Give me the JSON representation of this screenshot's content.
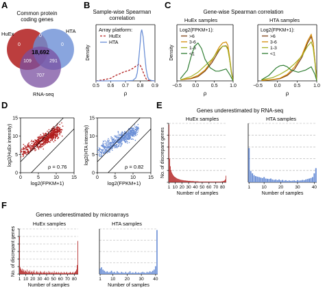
{
  "panels": {
    "A": {
      "letter": "A",
      "title_l1": "Common protein",
      "title_l2": "coding genes",
      "labels": {
        "huex": "HuEx",
        "hta": "HTA",
        "rnaseq": "RNA-seq"
      },
      "regions": {
        "center": "18,692",
        "huex_only": "0",
        "hta_only": "0",
        "huex_rnaseq": "109",
        "hta_rnaseq": "291",
        "rnaseq_only": "707",
        "huex_hta": "0"
      }
    },
    "B": {
      "letter": "B",
      "title_l1": "Sample-wise Spearman",
      "title_l2": "correlation",
      "legend_title": "Array platform:"
    },
    "C": {
      "letter": "C",
      "title": "Gene-wise Spearman correlation",
      "sub_huex": "HuEx samples",
      "sub_hta": "HTA samples",
      "legend_title": "Log2(FPKM+1):"
    },
    "D": {
      "letter": "D",
      "rho_huex": "ρ = 0.76",
      "rho_hta": "ρ = 0.82"
    },
    "E": {
      "letter": "E",
      "title": "Genes underestimated by RNA-seq",
      "sub_huex": "HuEx samples",
      "sub_hta": "HTA samples"
    },
    "F": {
      "letter": "F",
      "title": "Genes underestimated by microarrays",
      "sub_huex": "HuEx samples",
      "sub_hta": "HTA samples"
    }
  },
  "colors": {
    "huex": "#b01c1c",
    "hta": "#6b8fd6",
    "rnaseq": "#7a4fa0",
    "gt6": "#7a3a10",
    "c36": "#d48a00",
    "c13": "#a0b020",
    "lt1": "#2e7d32"
  },
  "chart_data": [
    {
      "id": "B",
      "type": "line",
      "ylabel": "Density",
      "xlabel": "ρ",
      "xlim": [
        0.5,
        0.9
      ],
      "ylim": [
        0,
        28
      ],
      "xticks": [
        "0.5",
        "0.6",
        "0.7",
        "0.8",
        "0.9"
      ],
      "legend": "top-left",
      "series": [
        {
          "name": "HuEx",
          "style": "dashed",
          "x": [
            0.5,
            0.55,
            0.6,
            0.63,
            0.66,
            0.69,
            0.72,
            0.75,
            0.77,
            0.79,
            0.8,
            0.81,
            0.82,
            0.83,
            0.84,
            0.85,
            0.86,
            0.88,
            0.9
          ],
          "y": [
            0,
            0.5,
            1.3,
            2.6,
            3.5,
            4.5,
            5.1,
            6.2,
            7.3,
            8.2,
            7.8,
            6.2,
            4.3,
            2.6,
            1.0,
            0.4,
            0.2,
            0.1,
            0
          ]
        },
        {
          "name": "HTA",
          "style": "solid",
          "x": [
            0.5,
            0.7,
            0.75,
            0.77,
            0.78,
            0.79,
            0.8,
            0.805,
            0.81,
            0.82,
            0.83,
            0.84,
            0.85,
            0.86,
            0.88,
            0.9
          ],
          "y": [
            0,
            0,
            0.2,
            1.5,
            4.0,
            11.0,
            19.0,
            24.0,
            25.5,
            22.0,
            13.5,
            6.0,
            2.0,
            0.6,
            0.1,
            0
          ]
        }
      ]
    },
    {
      "id": "C-HuEx",
      "type": "line",
      "ylabel": "Density",
      "xlabel": "ρ",
      "xlim": [
        -0.6,
        1.0
      ],
      "ylim": [
        0,
        2.6
      ],
      "xticks": [
        "−0.5",
        "0.0",
        "0.5",
        "1.0"
      ],
      "legend": "top-left",
      "series": [
        {
          "name": ">6",
          "x": [
            -0.5,
            -0.2,
            0.0,
            0.2,
            0.4,
            0.6,
            0.7,
            0.8,
            0.85,
            0.9,
            0.95,
            1.0
          ],
          "y": [
            0.05,
            0.1,
            0.2,
            0.45,
            0.85,
            1.4,
            1.6,
            1.62,
            1.5,
            1.0,
            0.4,
            0
          ]
        },
        {
          "name": "3-6",
          "x": [
            -0.5,
            -0.2,
            0.0,
            0.2,
            0.4,
            0.6,
            0.7,
            0.8,
            0.85,
            0.9,
            0.95,
            1.0
          ],
          "y": [
            0.05,
            0.12,
            0.25,
            0.5,
            0.95,
            1.55,
            1.75,
            1.8,
            1.65,
            1.1,
            0.45,
            0
          ]
        },
        {
          "name": "1-3",
          "x": [
            -0.5,
            -0.2,
            0.0,
            0.2,
            0.4,
            0.6,
            0.7,
            0.8,
            0.85,
            0.9,
            0.95,
            1.0
          ],
          "y": [
            0.05,
            0.2,
            0.4,
            0.7,
            1.0,
            1.45,
            1.6,
            1.6,
            1.45,
            1.0,
            0.4,
            0
          ]
        },
        {
          "name": "<1",
          "x": [
            -0.5,
            -0.3,
            -0.2,
            -0.1,
            0.0,
            0.1,
            0.2,
            0.35,
            0.5,
            0.6,
            0.7,
            0.8,
            0.9,
            1.0
          ],
          "y": [
            0.1,
            0.5,
            1.1,
            1.6,
            1.75,
            1.5,
            1.0,
            0.6,
            0.45,
            0.45,
            0.5,
            0.55,
            0.3,
            0
          ]
        }
      ]
    },
    {
      "id": "C-HTA",
      "type": "line",
      "xlabel": "ρ",
      "xlim": [
        -0.6,
        1.0
      ],
      "ylim": [
        0,
        2.6
      ],
      "xticks": [
        "−0.5",
        "0.0",
        "0.5",
        "1.0"
      ],
      "legend": "top-left",
      "series": [
        {
          "name": ">6",
          "x": [
            -0.5,
            -0.2,
            0.0,
            0.2,
            0.4,
            0.6,
            0.75,
            0.85,
            0.9,
            0.95,
            1.0
          ],
          "y": [
            0.02,
            0.05,
            0.1,
            0.25,
            0.55,
            1.1,
            1.75,
            2.05,
            1.75,
            0.9,
            0
          ]
        },
        {
          "name": "3-6",
          "x": [
            -0.5,
            -0.2,
            0.0,
            0.2,
            0.4,
            0.6,
            0.75,
            0.85,
            0.9,
            0.95,
            1.0
          ],
          "y": [
            0.02,
            0.06,
            0.12,
            0.3,
            0.65,
            1.2,
            1.85,
            2.15,
            1.8,
            0.95,
            0
          ]
        },
        {
          "name": "1-3",
          "x": [
            -0.5,
            -0.2,
            0.0,
            0.2,
            0.4,
            0.6,
            0.75,
            0.85,
            0.9,
            0.95,
            1.0
          ],
          "y": [
            0.05,
            0.15,
            0.3,
            0.5,
            0.8,
            1.15,
            1.6,
            1.8,
            1.55,
            0.85,
            0
          ]
        },
        {
          "name": "<1",
          "x": [
            -0.5,
            -0.3,
            -0.1,
            0.0,
            0.1,
            0.2,
            0.3,
            0.5,
            0.7,
            0.85,
            0.95,
            1.0
          ],
          "y": [
            0.05,
            0.25,
            0.6,
            0.7,
            0.72,
            0.65,
            0.5,
            0.4,
            0.5,
            0.65,
            0.3,
            0
          ]
        }
      ]
    },
    {
      "id": "D-HuEx",
      "type": "scatter",
      "xlabel": "log2(FPKM+1)",
      "ylabel": "log2(HuEx intensity)",
      "xlim": [
        0,
        15
      ],
      "ylim": [
        0,
        15
      ],
      "xticks": [
        "0",
        "5",
        "10",
        "15"
      ],
      "yticks": [
        "0",
        "5",
        "10",
        "15"
      ],
      "annotation": "ρ = 0.76"
    },
    {
      "id": "D-HTA",
      "type": "scatter",
      "xlabel": "log2(FPKM+1)",
      "ylabel": "log2(HTA intensity)",
      "xlim": [
        0,
        15
      ],
      "ylim": [
        0,
        15
      ],
      "xticks": [
        "0",
        "5",
        "10",
        "15"
      ],
      "yticks": [
        "0",
        "5",
        "10",
        "15"
      ],
      "annotation": "ρ = 0.82"
    },
    {
      "id": "E-HuEx",
      "type": "bar",
      "xlabel": "Number of samples",
      "ylabel": "No. of discrepant genes",
      "xlim": [
        0,
        85
      ],
      "ylim": [
        0,
        250
      ],
      "xticks": [
        "1",
        "10",
        "20",
        "30",
        "40",
        "50",
        "60",
        "70",
        "80"
      ],
      "yticks": [
        "0",
        "50",
        "100",
        "150",
        "200",
        "250"
      ],
      "values": [
        245,
        100,
        68,
        52,
        42,
        36,
        31,
        27,
        24,
        22,
        20,
        18,
        16,
        15,
        14,
        13,
        12,
        11,
        10,
        10,
        9,
        9,
        8,
        8,
        8,
        7,
        7,
        7,
        6,
        6,
        6,
        6,
        5,
        5,
        5,
        5,
        5,
        4,
        4,
        4,
        4,
        4,
        4,
        4,
        3,
        3,
        3,
        3,
        3,
        3,
        3,
        3,
        3,
        3,
        3,
        3,
        3,
        3,
        3,
        3,
        3,
        3,
        3,
        3,
        3,
        3,
        3,
        3,
        3,
        3,
        3,
        3,
        3,
        3,
        3,
        3,
        3,
        3,
        4,
        4,
        5,
        6,
        8,
        12,
        28
      ]
    },
    {
      "id": "E-HTA",
      "type": "bar",
      "xlabel": "Number of samples",
      "xlim": [
        0,
        42
      ],
      "ylim": [
        0,
        250
      ],
      "xticks": [
        "1",
        "10",
        "20",
        "30",
        "40"
      ],
      "values": [
        145,
        48,
        38,
        30,
        26,
        24,
        22,
        20,
        18,
        22,
        16,
        15,
        14,
        16,
        12,
        10,
        12,
        9,
        12,
        8,
        10,
        7,
        9,
        6,
        8,
        6,
        7,
        8,
        6,
        9,
        7,
        8,
        10,
        9,
        12,
        14,
        16,
        18,
        22,
        38,
        60
      ]
    },
    {
      "id": "F-HuEx",
      "type": "bar",
      "xlabel": "Number of samples",
      "ylabel": "No. of discrepant genes",
      "xlim": [
        0,
        85
      ],
      "ylim": [
        0,
        60
      ],
      "xticks": [
        "1",
        "10",
        "20",
        "30",
        "40",
        "50",
        "60",
        "70",
        "80"
      ],
      "yticks": [
        "0",
        "10",
        "20",
        "30",
        "40",
        "50",
        "60"
      ],
      "values": [
        50,
        9,
        7,
        5,
        7,
        4,
        6,
        3,
        5,
        4,
        3,
        6,
        2,
        4,
        3,
        5,
        2,
        3,
        4,
        2,
        3,
        5,
        2,
        1,
        3,
        4,
        2,
        3,
        1,
        2,
        4,
        3,
        2,
        1,
        3,
        2,
        4,
        2,
        1,
        3,
        2,
        1,
        4,
        2,
        3,
        1,
        2,
        3,
        1,
        2,
        4,
        1,
        2,
        3,
        2,
        1,
        3,
        2,
        1,
        2,
        3,
        1,
        2,
        1,
        3,
        2,
        1,
        2,
        3,
        1,
        2,
        1,
        2,
        3,
        2,
        1,
        2,
        3,
        1,
        2,
        3,
        4,
        6,
        12,
        44
      ]
    },
    {
      "id": "F-HTA",
      "type": "bar",
      "xlabel": "Number of samples",
      "xlim": [
        0,
        42
      ],
      "ylim": [
        0,
        80
      ],
      "xticks": [
        "1",
        "10",
        "20",
        "30",
        "40"
      ],
      "values": [
        10,
        12,
        8,
        6,
        4,
        5,
        3,
        4,
        6,
        3,
        4,
        2,
        5,
        3,
        2,
        4,
        3,
        2,
        4,
        2,
        3,
        5,
        2,
        3,
        2,
        4,
        2,
        3,
        2,
        3,
        4,
        3,
        2,
        4,
        3,
        5,
        4,
        6,
        8,
        14,
        78
      ]
    }
  ]
}
